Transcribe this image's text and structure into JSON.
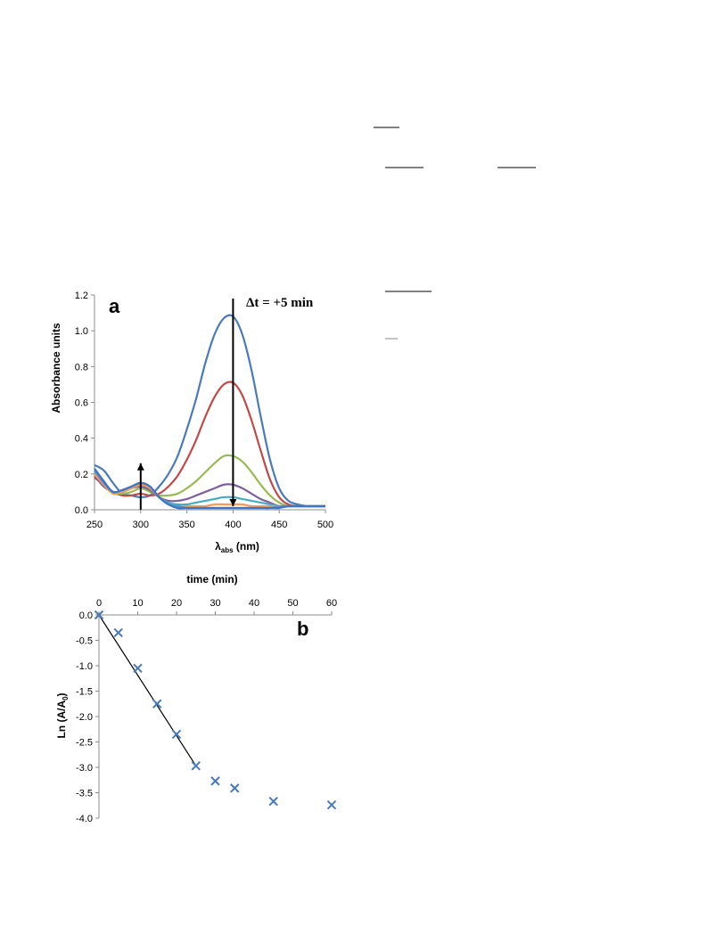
{
  "chart_data": [
    {
      "type": "line",
      "panel_label": "a",
      "title": "",
      "xlabel": "λ",
      "xlabel_sub": "abs",
      "xlabel_unit": " (nm)",
      "ylabel": "Absorbance units",
      "xlim": [
        250,
        500
      ],
      "ylim": [
        0,
        1.2
      ],
      "x_ticks": [
        250,
        300,
        350,
        400,
        450,
        500
      ],
      "y_ticks": [
        0.0,
        0.2,
        0.4,
        0.6,
        0.8,
        1.0,
        1.2
      ],
      "y_tick_labels": [
        "0.0",
        "0.2",
        "0.4",
        "0.6",
        "0.8",
        "1.0",
        "1.2"
      ],
      "grid": false,
      "annotation": "Δt = +5 min",
      "arrows": [
        {
          "x": 300,
          "y_from": 0.0,
          "y_to": 0.26,
          "direction": "up"
        },
        {
          "x": 400,
          "y_from": 1.18,
          "y_to": 0.02,
          "direction": "down"
        }
      ],
      "x": [
        250,
        260,
        270,
        280,
        290,
        300,
        310,
        320,
        330,
        340,
        350,
        360,
        370,
        380,
        390,
        400,
        410,
        420,
        430,
        440,
        450,
        460,
        470,
        480,
        490,
        500
      ],
      "series": [
        {
          "color": "#4a7ab8",
          "values": [
            0.25,
            0.22,
            0.15,
            0.09,
            0.08,
            0.07,
            0.08,
            0.13,
            0.2,
            0.3,
            0.45,
            0.62,
            0.82,
            0.98,
            1.07,
            1.08,
            0.98,
            0.78,
            0.52,
            0.28,
            0.12,
            0.05,
            0.03,
            0.02,
            0.02,
            0.02
          ]
        },
        {
          "color": "#be4b48",
          "values": [
            0.18,
            0.14,
            0.1,
            0.08,
            0.08,
            0.09,
            0.08,
            0.09,
            0.13,
            0.19,
            0.28,
            0.39,
            0.52,
            0.63,
            0.7,
            0.71,
            0.64,
            0.5,
            0.33,
            0.17,
            0.07,
            0.03,
            0.02,
            0.02,
            0.02,
            0.02
          ]
        },
        {
          "color": "#98b954",
          "values": [
            0.2,
            0.14,
            0.1,
            0.09,
            0.1,
            0.12,
            0.1,
            0.08,
            0.08,
            0.09,
            0.12,
            0.16,
            0.21,
            0.26,
            0.3,
            0.3,
            0.27,
            0.21,
            0.14,
            0.08,
            0.04,
            0.02,
            0.02,
            0.02,
            0.02,
            0.02
          ]
        },
        {
          "color": "#7d60a0",
          "values": [
            0.19,
            0.13,
            0.1,
            0.1,
            0.12,
            0.13,
            0.11,
            0.07,
            0.05,
            0.05,
            0.06,
            0.08,
            0.1,
            0.12,
            0.14,
            0.14,
            0.12,
            0.09,
            0.06,
            0.04,
            0.02,
            0.02,
            0.02,
            0.02,
            0.02,
            0.02
          ]
        },
        {
          "color": "#46aac5",
          "values": [
            0.21,
            0.15,
            0.1,
            0.1,
            0.12,
            0.14,
            0.12,
            0.07,
            0.04,
            0.03,
            0.03,
            0.04,
            0.05,
            0.06,
            0.07,
            0.07,
            0.06,
            0.05,
            0.04,
            0.03,
            0.02,
            0.02,
            0.02,
            0.02,
            0.02,
            0.02
          ]
        },
        {
          "color": "#f59d56",
          "values": [
            0.2,
            0.14,
            0.09,
            0.1,
            0.12,
            0.14,
            0.12,
            0.07,
            0.03,
            0.02,
            0.02,
            0.02,
            0.02,
            0.03,
            0.03,
            0.03,
            0.03,
            0.02,
            0.02,
            0.02,
            0.02,
            0.02,
            0.02,
            0.02,
            0.02,
            0.02
          ]
        },
        {
          "color": "#5b8ec9",
          "values": [
            0.22,
            0.15,
            0.1,
            0.11,
            0.13,
            0.15,
            0.13,
            0.07,
            0.03,
            0.02,
            0.01,
            0.01,
            0.01,
            0.01,
            0.01,
            0.01,
            0.01,
            0.01,
            0.01,
            0.01,
            0.02,
            0.02,
            0.02,
            0.02,
            0.02,
            0.02
          ]
        },
        {
          "color": "#3f74c4",
          "values": [
            0.23,
            0.16,
            0.1,
            0.11,
            0.13,
            0.15,
            0.13,
            0.07,
            0.03,
            0.01,
            0.01,
            0.01,
            0.01,
            0.01,
            0.01,
            0.01,
            0.01,
            0.01,
            0.01,
            0.01,
            0.01,
            0.02,
            0.02,
            0.02,
            0.02,
            0.02
          ]
        }
      ]
    },
    {
      "type": "scatter",
      "panel_label": "b",
      "title": "",
      "xlabel": "time (min)",
      "ylabel": "Ln (A/A",
      "ylabel_sub": "0",
      "ylabel_end": ")",
      "x_axis_position": "top",
      "xlim": [
        0,
        60
      ],
      "ylim": [
        -4.0,
        0.0
      ],
      "x_ticks": [
        0,
        10,
        20,
        30,
        40,
        50,
        60
      ],
      "y_ticks": [
        0.0,
        -0.5,
        -1.0,
        -1.5,
        -2.0,
        -2.5,
        -3.0,
        -3.5,
        -4.0
      ],
      "y_tick_labels": [
        "0.0",
        "-0.5",
        "-1.0",
        "-1.5",
        "-2.0",
        "-2.5",
        "-3.0",
        "-3.5",
        "-4.0"
      ],
      "grid": false,
      "marker": "x",
      "marker_color": "#4a7ab8",
      "points": [
        {
          "x": 0,
          "y": 0.0
        },
        {
          "x": 5,
          "y": -0.35
        },
        {
          "x": 10,
          "y": -1.05
        },
        {
          "x": 15,
          "y": -1.75
        },
        {
          "x": 20,
          "y": -2.35
        },
        {
          "x": 25,
          "y": -2.97
        },
        {
          "x": 30,
          "y": -3.27
        },
        {
          "x": 35,
          "y": -3.41
        },
        {
          "x": 45,
          "y": -3.67
        },
        {
          "x": 60,
          "y": -3.74
        }
      ],
      "fit_line": {
        "x": [
          0,
          25
        ],
        "y": [
          0.0,
          -2.97
        ]
      }
    }
  ],
  "page_decorations": {
    "stray_lines": true
  }
}
